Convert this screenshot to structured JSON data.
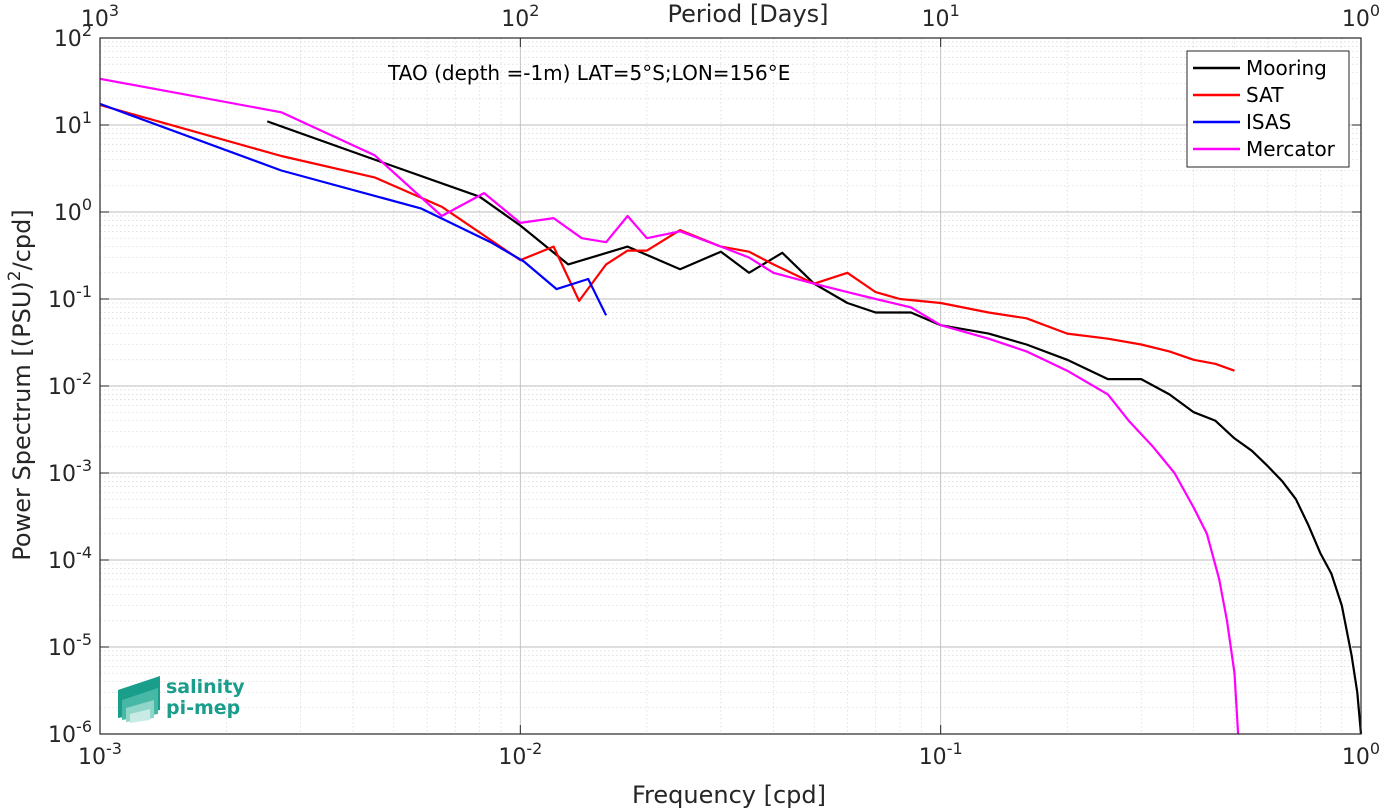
{
  "chart_data": {
    "type": "line",
    "xscale": "log",
    "yscale": "log",
    "xlim": [
      0.001,
      1
    ],
    "ylim": [
      1e-06,
      100
    ],
    "xlabel": "Frequency [cpd]",
    "ylabel": "Power Spectrum [(PSU)²/cpd]",
    "top_xlabel": "Period [Days]",
    "annotation": "TAO (depth =-1m) LAT=5°S;LON=156°E",
    "grid": true,
    "legend_position": "top-right",
    "x_ticks": [
      0.001,
      0.01,
      0.1,
      1
    ],
    "x_tick_labels": [
      {
        "base": "10",
        "exp": "-3"
      },
      {
        "base": "10",
        "exp": "-2"
      },
      {
        "base": "10",
        "exp": "-1"
      },
      {
        "base": "10",
        "exp": "0"
      }
    ],
    "top_x_tick_labels": [
      {
        "base": "10",
        "exp": "3"
      },
      {
        "base": "10",
        "exp": "2"
      },
      {
        "base": "10",
        "exp": "1"
      },
      {
        "base": "10",
        "exp": "0"
      }
    ],
    "y_ticks": [
      1e-06,
      1e-05,
      0.0001,
      0.001,
      0.01,
      0.1,
      1,
      10,
      100
    ],
    "y_tick_labels": [
      {
        "base": "10",
        "exp": "-6"
      },
      {
        "base": "10",
        "exp": "-5"
      },
      {
        "base": "10",
        "exp": "-4"
      },
      {
        "base": "10",
        "exp": "-3"
      },
      {
        "base": "10",
        "exp": "-2"
      },
      {
        "base": "10",
        "exp": "-1"
      },
      {
        "base": "10",
        "exp": "0"
      },
      {
        "base": "10",
        "exp": "1"
      },
      {
        "base": "10",
        "exp": "2"
      }
    ],
    "series": [
      {
        "name": "Mooring",
        "color": "#000000",
        "points": [
          [
            0.0025,
            11
          ],
          [
            0.0045,
            4
          ],
          [
            0.008,
            1.5
          ],
          [
            0.01,
            0.7
          ],
          [
            0.013,
            0.25
          ],
          [
            0.018,
            0.4
          ],
          [
            0.024,
            0.22
          ],
          [
            0.03,
            0.35
          ],
          [
            0.035,
            0.2
          ],
          [
            0.042,
            0.34
          ],
          [
            0.05,
            0.15
          ],
          [
            0.06,
            0.09
          ],
          [
            0.07,
            0.07
          ],
          [
            0.085,
            0.07
          ],
          [
            0.1,
            0.05
          ],
          [
            0.13,
            0.04
          ],
          [
            0.16,
            0.03
          ],
          [
            0.2,
            0.02
          ],
          [
            0.25,
            0.012
          ],
          [
            0.3,
            0.012
          ],
          [
            0.35,
            0.008
          ],
          [
            0.4,
            0.005
          ],
          [
            0.45,
            0.004
          ],
          [
            0.5,
            0.0025
          ],
          [
            0.55,
            0.0018
          ],
          [
            0.6,
            0.0012
          ],
          [
            0.65,
            0.0008
          ],
          [
            0.7,
            0.0005
          ],
          [
            0.75,
            0.00025
          ],
          [
            0.8,
            0.00012
          ],
          [
            0.85,
            7e-05
          ],
          [
            0.9,
            3e-05
          ],
          [
            0.95,
            8e-06
          ],
          [
            0.98,
            3e-06
          ],
          [
            1.0,
            1e-06
          ]
        ]
      },
      {
        "name": "SAT",
        "color": "#ff0000",
        "points": [
          [
            0.001,
            17
          ],
          [
            0.0027,
            4.4
          ],
          [
            0.0045,
            2.5
          ],
          [
            0.0065,
            1.15
          ],
          [
            0.01,
            0.28
          ],
          [
            0.012,
            0.4
          ],
          [
            0.0138,
            0.095
          ],
          [
            0.016,
            0.25
          ],
          [
            0.018,
            0.36
          ],
          [
            0.02,
            0.36
          ],
          [
            0.024,
            0.62
          ],
          [
            0.03,
            0.4
          ],
          [
            0.035,
            0.35
          ],
          [
            0.04,
            0.25
          ],
          [
            0.05,
            0.15
          ],
          [
            0.06,
            0.2
          ],
          [
            0.07,
            0.12
          ],
          [
            0.08,
            0.1
          ],
          [
            0.1,
            0.09
          ],
          [
            0.13,
            0.07
          ],
          [
            0.16,
            0.06
          ],
          [
            0.2,
            0.04
          ],
          [
            0.25,
            0.035
          ],
          [
            0.3,
            0.03
          ],
          [
            0.35,
            0.025
          ],
          [
            0.4,
            0.02
          ],
          [
            0.45,
            0.018
          ],
          [
            0.5,
            0.015
          ]
        ]
      },
      {
        "name": "ISAS",
        "color": "#0000ff",
        "points": [
          [
            0.001,
            17.5
          ],
          [
            0.0027,
            3
          ],
          [
            0.0058,
            1.1
          ],
          [
            0.0085,
            0.45
          ],
          [
            0.0102,
            0.27
          ],
          [
            0.0122,
            0.13
          ],
          [
            0.0145,
            0.17
          ],
          [
            0.016,
            0.065
          ]
        ]
      },
      {
        "name": "Mercator",
        "color": "#ff00ff",
        "points": [
          [
            0.001,
            34
          ],
          [
            0.0027,
            14
          ],
          [
            0.0045,
            4.5
          ],
          [
            0.0065,
            0.9
          ],
          [
            0.0082,
            1.65
          ],
          [
            0.01,
            0.75
          ],
          [
            0.012,
            0.85
          ],
          [
            0.014,
            0.5
          ],
          [
            0.016,
            0.45
          ],
          [
            0.018,
            0.9
          ],
          [
            0.02,
            0.5
          ],
          [
            0.024,
            0.6
          ],
          [
            0.03,
            0.4
          ],
          [
            0.035,
            0.3
          ],
          [
            0.04,
            0.2
          ],
          [
            0.05,
            0.15
          ],
          [
            0.06,
            0.12
          ],
          [
            0.07,
            0.1
          ],
          [
            0.085,
            0.08
          ],
          [
            0.1,
            0.05
          ],
          [
            0.13,
            0.035
          ],
          [
            0.16,
            0.025
          ],
          [
            0.2,
            0.015
          ],
          [
            0.25,
            0.008
          ],
          [
            0.28,
            0.004
          ],
          [
            0.32,
            0.002
          ],
          [
            0.36,
            0.001
          ],
          [
            0.4,
            0.0004
          ],
          [
            0.43,
            0.0002
          ],
          [
            0.46,
            6e-05
          ],
          [
            0.48,
            2e-05
          ],
          [
            0.5,
            5e-06
          ],
          [
            0.51,
            1e-06
          ]
        ]
      }
    ]
  },
  "logo": {
    "line1": "salinity",
    "line2": "pi-mep"
  }
}
